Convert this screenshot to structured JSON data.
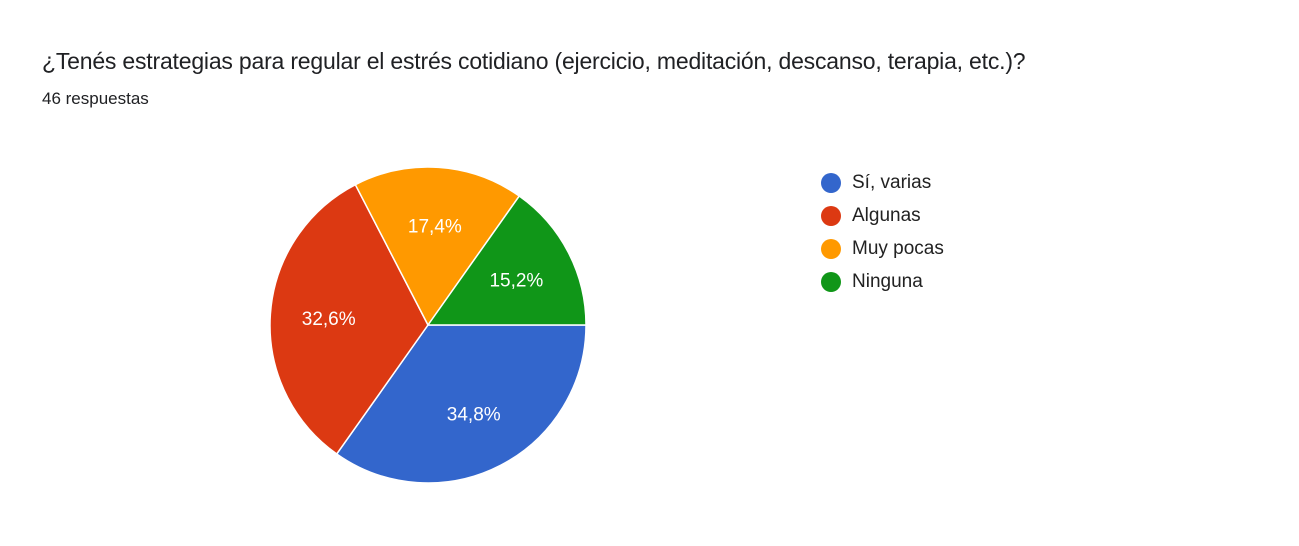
{
  "header": {
    "title": "¿Tenés estrategias para regular el estrés cotidiano (ejercicio, meditación, descanso, terapia, etc.)?",
    "responses": "46 respuestas"
  },
  "chart_data": {
    "type": "pie",
    "title": "¿Tenés estrategias para regular el estrés cotidiano (ejercicio, meditación, descanso, terapia, etc.)?",
    "subtitle": "46 respuestas",
    "categories": [
      "Sí, varias",
      "Algunas",
      "Muy pocas",
      "Ninguna"
    ],
    "values": [
      34.8,
      32.6,
      17.4,
      15.2
    ],
    "labels": [
      "34,8%",
      "32,6%",
      "17,4%",
      "15,2%"
    ],
    "colors": [
      "#3366cc",
      "#dc3912",
      "#ff9900",
      "#109618"
    ],
    "legend_position": "right"
  },
  "legend": {
    "items": [
      {
        "label": "Sí, varias",
        "color": "#3366cc"
      },
      {
        "label": "Algunas",
        "color": "#dc3912"
      },
      {
        "label": "Muy pocas",
        "color": "#ff9900"
      },
      {
        "label": "Ninguna",
        "color": "#109618"
      }
    ]
  }
}
